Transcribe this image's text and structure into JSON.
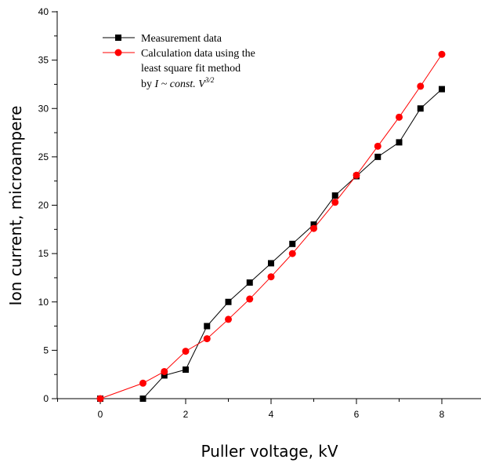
{
  "chart_data": {
    "type": "line",
    "xlabel": "Puller voltage, kV",
    "ylabel": "Ion current, microampere",
    "xlim": [
      -1,
      9
    ],
    "ylim": [
      0,
      40
    ],
    "x_ticks": [
      0,
      2,
      4,
      6,
      8
    ],
    "y_ticks": [
      0,
      5,
      10,
      15,
      20,
      25,
      30,
      35,
      40
    ],
    "x_tick_labels": [
      "0",
      "2",
      "4",
      "6",
      "8"
    ],
    "y_tick_labels": [
      "0",
      "5",
      "10",
      "15",
      "20",
      "25",
      "30",
      "35",
      "40"
    ],
    "grid": false,
    "legend_position": "top-left",
    "series": [
      {
        "name": "Measurement data",
        "marker": "square",
        "color": "#000000",
        "x": [
          0,
          1,
          1.5,
          2,
          2.5,
          3,
          3.5,
          4,
          4.5,
          5,
          5.5,
          6,
          6.5,
          7,
          7.5,
          8
        ],
        "y": [
          0,
          0,
          2.4,
          3.0,
          7.5,
          10.0,
          12.0,
          14.0,
          16.0,
          18.0,
          21.0,
          23.0,
          25.0,
          26.5,
          30.0,
          32.0
        ]
      },
      {
        "name": "Calculation data using the least square fit method by I ~ const. V3/2",
        "marker": "circle",
        "color": "#ff0000",
        "x": [
          0,
          1,
          1.5,
          2,
          2.5,
          3,
          3.5,
          4,
          4.5,
          5,
          5.5,
          6,
          6.5,
          7,
          7.5,
          8
        ],
        "y": [
          0,
          1.6,
          2.8,
          4.9,
          6.2,
          8.2,
          10.3,
          12.6,
          15.0,
          17.6,
          20.3,
          23.1,
          26.1,
          29.1,
          32.3,
          35.6
        ]
      }
    ],
    "legend": {
      "measurement": "Measurement data",
      "calc_line1": "Calculation data using the",
      "calc_line2": "least square fit method",
      "calc_line3_prefix": "by ",
      "calc_line3_formula": "I ~ const. V",
      "calc_line3_exponent": "3/2"
    }
  }
}
